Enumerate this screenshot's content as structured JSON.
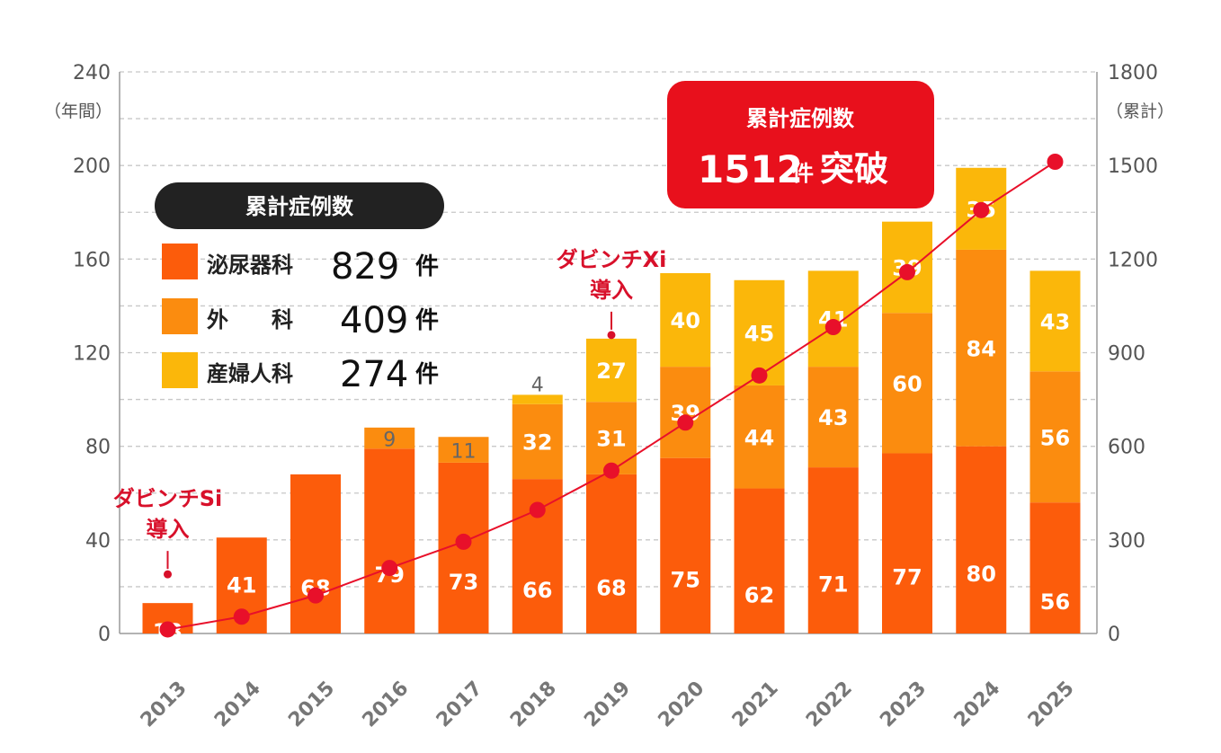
{
  "chart_data": {
    "type": "bar",
    "categories": [
      "2013",
      "2014",
      "2015",
      "2016",
      "2017",
      "2018",
      "2019",
      "2020",
      "2021",
      "2022",
      "2023",
      "2024",
      "2025"
    ],
    "series": [
      {
        "name": "泌尿器科",
        "color": "#fc5c0b",
        "values": [
          13,
          41,
          68,
          79,
          73,
          66,
          68,
          75,
          62,
          71,
          77,
          80,
          56
        ]
      },
      {
        "name": "外　　科",
        "color": "#fb8c0f",
        "values": [
          0,
          0,
          0,
          9,
          11,
          32,
          31,
          39,
          44,
          43,
          60,
          84,
          56
        ]
      },
      {
        "name": "産婦人科",
        "color": "#fbb70a",
        "values": [
          0,
          0,
          0,
          0,
          0,
          4,
          27,
          40,
          45,
          41,
          39,
          35,
          43
        ]
      }
    ],
    "cumulative": {
      "color": "#e8102a",
      "values": [
        13,
        54,
        122,
        210,
        294,
        396,
        522,
        676,
        827,
        982,
        1158,
        1357,
        1512
      ]
    },
    "y_left": {
      "ticks": [
        "0",
        "40",
        "80",
        "120",
        "160",
        "200",
        "240"
      ],
      "min": 0,
      "max": 240,
      "unit": "（年間）"
    },
    "y_right": {
      "ticks": [
        "0",
        "300",
        "600",
        "900",
        "1200",
        "1500",
        "1800"
      ],
      "min": 0,
      "max": 1800,
      "unit": "（累計）"
    },
    "grid": true,
    "annotations": [
      {
        "category": "2013",
        "line1": "ダビンチSi",
        "line2": "導入"
      },
      {
        "category": "2019",
        "line1": "ダビンチXi",
        "line2": "導入"
      }
    ],
    "legend": {
      "title": "累計症例数",
      "items": [
        {
          "name": "泌尿器科",
          "count": "829",
          "unit": "件",
          "color": "#fc5c0b"
        },
        {
          "name": "外　　科",
          "count": "409",
          "unit": "件",
          "color": "#fb8c0f"
        },
        {
          "name": "産婦人科",
          "count": "274",
          "unit": "件",
          "color": "#fbb70a"
        }
      ]
    },
    "badge": {
      "title": "累計症例数",
      "number": "1512",
      "unit": "件",
      "suffix": "突破",
      "color": "#e8101c"
    }
  }
}
